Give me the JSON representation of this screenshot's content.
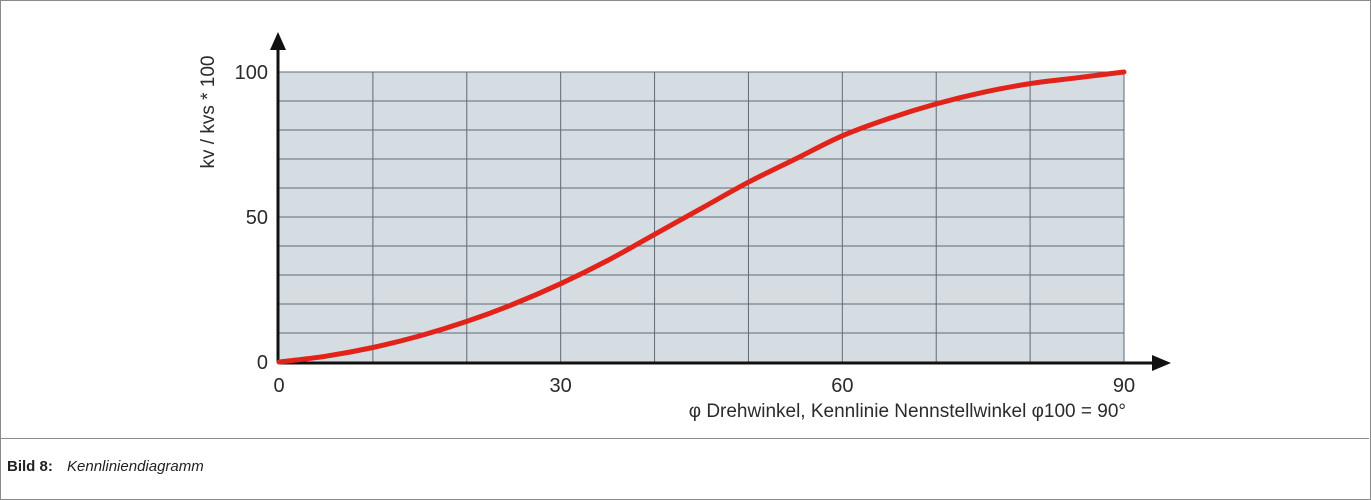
{
  "caption": {
    "label": "Bild 8:",
    "title": "Kennliniendiagramm"
  },
  "colors": {
    "plot_background": "#d5dde3",
    "grid": "#5e6a75",
    "curve": "#e2231a",
    "axis": "#111111"
  },
  "chart_data": {
    "type": "line",
    "xlabel": "φ Drehwinkel, Kennlinie Nennstellwinkel φ100 = 90°",
    "ylabel": "kv / kvs * 100",
    "xlim": [
      0,
      90
    ],
    "ylim": [
      0,
      100
    ],
    "x_ticks": [
      0,
      30,
      60,
      90
    ],
    "y_ticks": [
      0,
      50,
      100
    ],
    "grid": true,
    "series": [
      {
        "x": [
          0,
          5,
          10,
          15,
          20,
          25,
          30,
          35,
          40,
          45,
          50,
          55,
          60,
          65,
          70,
          75,
          80,
          85,
          90
        ],
        "values": [
          0,
          2,
          5,
          9,
          14,
          20,
          27,
          35,
          44,
          53,
          62,
          70,
          78,
          84,
          89,
          93,
          96,
          98,
          100
        ]
      }
    ]
  }
}
